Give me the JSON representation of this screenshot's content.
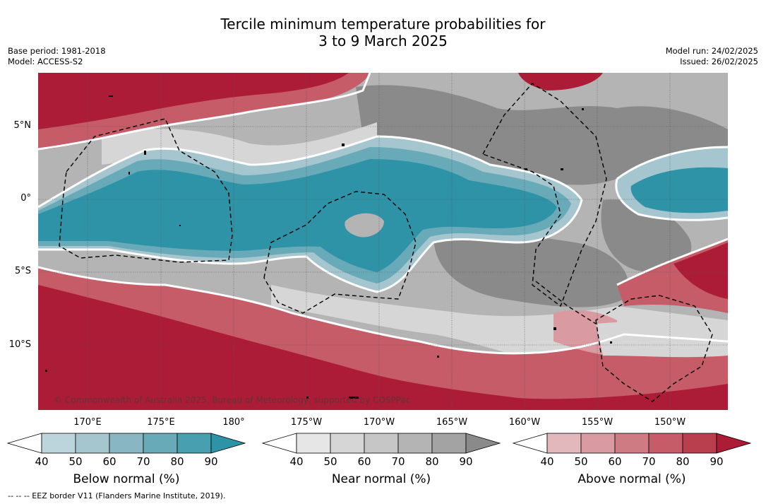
{
  "title_line1": "Tercile minimum temperature probabilities for",
  "title_line2": "3 to 9 March 2025",
  "base_period": "Base period: 1981-2018",
  "model": "Model: ACCESS-S2",
  "model_run": "Model run: 24/02/2025",
  "issued": "Issued: 26/02/2025",
  "copyright": "© Commonwealth of Australia 2025, Bureau of Meteorology, supported by COSPPac",
  "footnote": "--  --  -- EEZ border V11 (Flanders Marine Institute, 2019).",
  "lat_labels": [
    "5°N",
    "0°",
    "5°S",
    "10°S"
  ],
  "lon_labels": [
    "170°E",
    "175°E",
    "180°",
    "175°W",
    "170°W",
    "165°W",
    "160°W",
    "155°W",
    "150°W"
  ],
  "colorbars": [
    {
      "name": "Below normal (%)",
      "ticks": [
        "40",
        "50",
        "60",
        "70",
        "80",
        "90"
      ],
      "colors": [
        "#ffffff",
        "#bcd4db",
        "#a5c6ce",
        "#88b7c3",
        "#69aab8",
        "#489fb0",
        "#2f93a7"
      ]
    },
    {
      "name": "Near normal (%)",
      "ticks": [
        "40",
        "50",
        "60",
        "70",
        "80",
        "90"
      ],
      "colors": [
        "#ffffff",
        "#e6e6e6",
        "#d6d6d6",
        "#c6c6c6",
        "#b4b4b4",
        "#a3a3a3",
        "#8a8a8a"
      ]
    },
    {
      "name": "Above normal (%)",
      "ticks": [
        "40",
        "50",
        "60",
        "70",
        "80",
        "90"
      ],
      "colors": [
        "#ffffff",
        "#e2b8bd",
        "#d99aa1",
        "#cf7b84",
        "#c55c68",
        "#ba3f4e",
        "#ad1c37"
      ]
    }
  ],
  "map_colors": {
    "below_deep": "#2f93a7",
    "below_mid": "#69aab8",
    "below_light": "#a5c6ce",
    "near_light": "#d6d6d6",
    "near_mid": "#b4b4b4",
    "near_dark": "#8a8a8a",
    "above_light": "#d99aa1",
    "above_mid": "#c55c68",
    "above_deep": "#ad1c37"
  }
}
